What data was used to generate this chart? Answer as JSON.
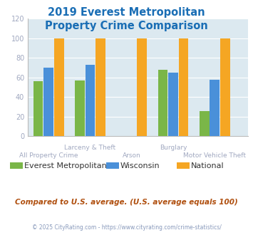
{
  "title": "2019 Everest Metropolitan\nProperty Crime Comparison",
  "categories": [
    "All Property Crime",
    "Larceny & Theft",
    "Arson",
    "Burglary",
    "Motor Vehicle Theft"
  ],
  "series": {
    "Everest Metropolitan": [
      56,
      57,
      0,
      68,
      26
    ],
    "Wisconsin": [
      70,
      73,
      0,
      65,
      58
    ],
    "National": [
      100,
      100,
      100,
      100,
      100
    ]
  },
  "colors": {
    "Everest Metropolitan": "#7ab648",
    "Wisconsin": "#4a90d9",
    "National": "#f5a623"
  },
  "ylim": [
    0,
    120
  ],
  "yticks": [
    0,
    20,
    40,
    60,
    80,
    100,
    120
  ],
  "plot_bg_color": "#dce9f0",
  "title_color": "#1a6eb5",
  "title_fontsize": 10.5,
  "axis_label_color": "#a0a8c0",
  "legend_fontsize": 8,
  "footer_text": "Compared to U.S. average. (U.S. average equals 100)",
  "footer_color": "#b05010",
  "copyright_text": "© 2025 CityRating.com - https://www.cityrating.com/crime-statistics/",
  "copyright_color": "#8899bb",
  "bar_width": 0.25,
  "group_positions": [
    0.4,
    1.4,
    2.4,
    3.4,
    4.4
  ],
  "xlim": [
    -0.1,
    5.2
  ]
}
